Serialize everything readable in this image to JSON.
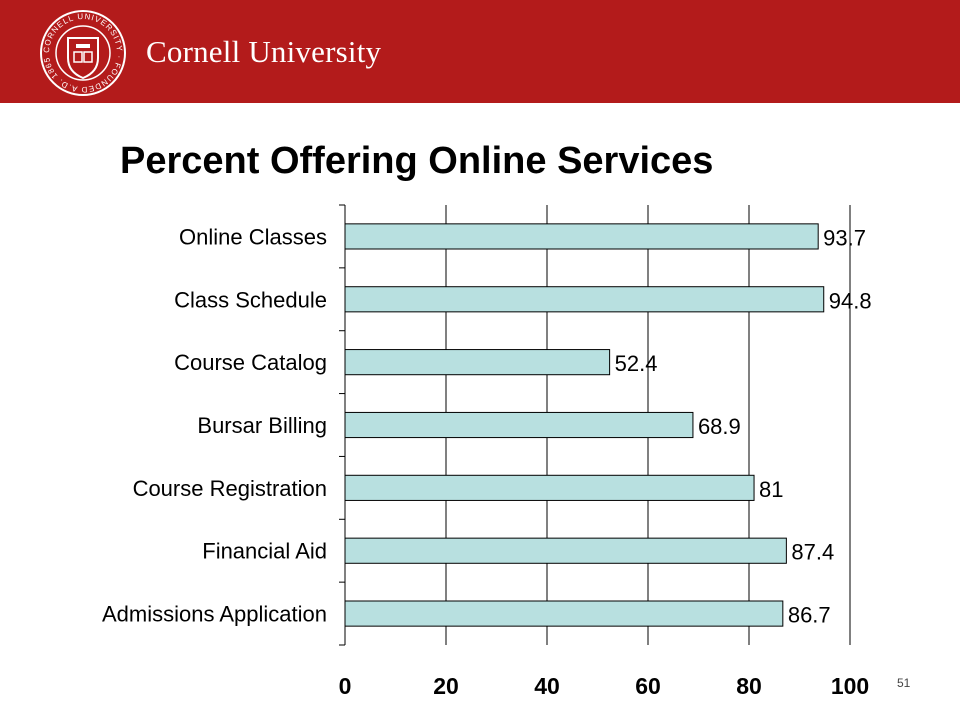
{
  "header": {
    "brand": "Cornell University",
    "seal_ring_text": "CORNELL UNIVERSITY · FOUNDED A.D. 1865"
  },
  "slide": {
    "title": "Percent Offering Online Services",
    "number": "51"
  },
  "colors": {
    "banner": "#b31b1b",
    "bar_fill": "#b8e0e0",
    "bar_stroke": "#000000",
    "gridline": "#000000"
  },
  "chart_data": {
    "type": "bar",
    "orientation": "horizontal",
    "title": "Percent Offering Online Services",
    "categories": [
      "Online Classes",
      "Class Schedule",
      "Course Catalog",
      "Bursar Billing",
      "Course Registration",
      "Financial Aid",
      "Admissions Application"
    ],
    "values": [
      93.7,
      94.8,
      52.4,
      68.9,
      81,
      87.4,
      86.7
    ],
    "data_labels": [
      "93.7",
      "94.8",
      "52.4",
      "68.9",
      "81",
      "87.4",
      "86.7"
    ],
    "x_ticks": [
      "0",
      "20",
      "40",
      "60",
      "80",
      "100"
    ],
    "xlim": [
      0,
      100
    ],
    "grid": true,
    "legend": "none"
  }
}
